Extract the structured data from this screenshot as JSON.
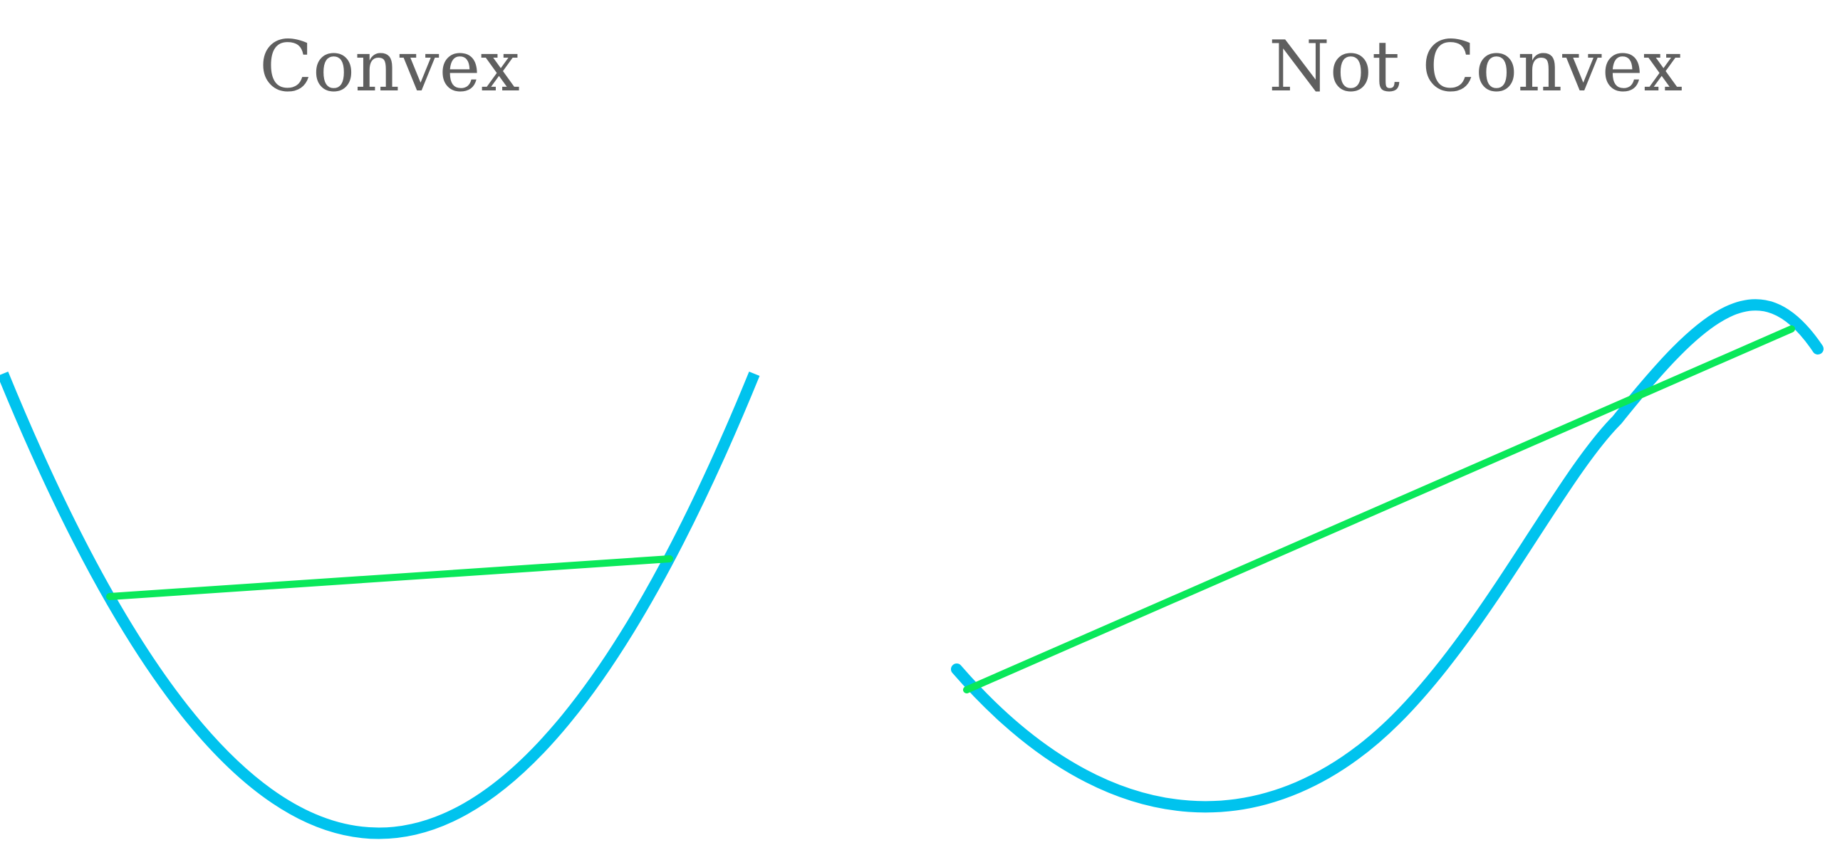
{
  "panels": {
    "left": {
      "title": "Convex"
    },
    "right": {
      "title": "Not Convex"
    }
  },
  "colors": {
    "curve": "#00c3ee",
    "chord": "#0ae85a",
    "title": "#5f5f5f",
    "background": "#ffffff"
  }
}
